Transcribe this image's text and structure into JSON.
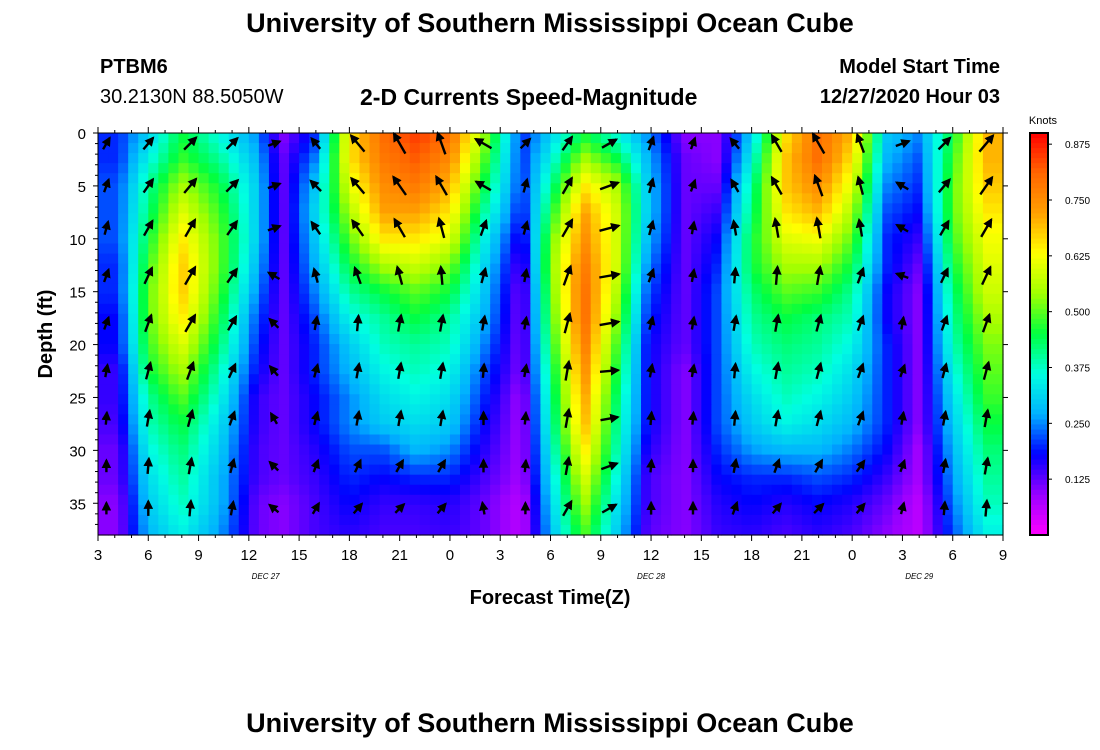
{
  "header": {
    "title": "University of Southern Mississippi Ocean Cube",
    "station_id": "PTBM6",
    "station_coords": "30.2130N 88.5050W",
    "subtitle": "2-D Currents Speed-Magnitude",
    "model_start_label": "Model Start Time",
    "model_start_value": "12/27/2020 Hour 03"
  },
  "footer": {
    "title": "University of Southern Mississippi Ocean Cube"
  },
  "chart_data": {
    "type": "heatmap",
    "title": "2-D Currents Speed-Magnitude",
    "xlabel": "Forecast Time(Z)",
    "ylabel": "Depth (ft)",
    "xlim": [
      3,
      57
    ],
    "ylim": [
      0,
      38
    ],
    "y_ticks": [
      "0",
      "5",
      "10",
      "15",
      "20",
      "25",
      "30",
      "35"
    ],
    "y_tick_values": [
      0,
      5,
      10,
      15,
      20,
      25,
      30,
      35
    ],
    "x_ticks": [
      "3",
      "6",
      "9",
      "12",
      "15",
      "18",
      "21",
      "0",
      "3",
      "6",
      "9",
      "12",
      "15",
      "18",
      "21",
      "0",
      "3",
      "6",
      "9"
    ],
    "date_labels": [
      {
        "label": "DEC 27",
        "hour": 13
      },
      {
        "label": "DEC 28",
        "hour": 36
      },
      {
        "label": "DEC 29",
        "hour": 52
      }
    ],
    "colorbar": {
      "title": "Knots",
      "ticks": [
        "0.875",
        "0.750",
        "0.625",
        "0.500",
        "0.375",
        "0.250",
        "0.125"
      ],
      "tick_values": [
        0.875,
        0.75,
        0.625,
        0.5,
        0.375,
        0.25,
        0.125
      ],
      "range": [
        0,
        0.9
      ],
      "colors": [
        "#ff00ff",
        "#9900ff",
        "#0000ff",
        "#00b0ff",
        "#00ffe0",
        "#00ff40",
        "#a0ff00",
        "#ffff00",
        "#ffa000",
        "#ff6600",
        "#ff0000"
      ]
    },
    "times": [
      4.2,
      6,
      8,
      10.3,
      12.5,
      14,
      16,
      18,
      20,
      22,
      24,
      26,
      28.3,
      30,
      32,
      34,
      35.8,
      38,
      40,
      42,
      44,
      46,
      48,
      50,
      52,
      54,
      56
    ],
    "depths": [
      0,
      2.5,
      5,
      7.5,
      10,
      12.5,
      15,
      17.5,
      20,
      22.5,
      25,
      27.5,
      30,
      32.5,
      35,
      37.5
    ],
    "speed": [
      [
        0.2,
        0.3,
        0.45,
        0.35,
        0.25,
        0.1,
        0.2,
        0.65,
        0.8,
        0.85,
        0.8,
        0.55,
        0.2,
        0.3,
        0.45,
        0.35,
        0.25,
        0.1,
        0.1,
        0.3,
        0.65,
        0.8,
        0.7,
        0.3,
        0.25,
        0.45,
        0.7
      ],
      [
        0.2,
        0.35,
        0.48,
        0.4,
        0.28,
        0.12,
        0.25,
        0.65,
        0.78,
        0.82,
        0.75,
        0.5,
        0.2,
        0.35,
        0.55,
        0.45,
        0.28,
        0.12,
        0.1,
        0.35,
        0.68,
        0.8,
        0.65,
        0.28,
        0.22,
        0.48,
        0.7
      ],
      [
        0.22,
        0.4,
        0.55,
        0.45,
        0.3,
        0.12,
        0.3,
        0.6,
        0.75,
        0.78,
        0.7,
        0.45,
        0.2,
        0.4,
        0.65,
        0.55,
        0.3,
        0.12,
        0.12,
        0.4,
        0.68,
        0.75,
        0.6,
        0.25,
        0.2,
        0.5,
        0.68
      ],
      [
        0.22,
        0.42,
        0.6,
        0.48,
        0.3,
        0.12,
        0.32,
        0.55,
        0.72,
        0.72,
        0.65,
        0.4,
        0.18,
        0.45,
        0.72,
        0.58,
        0.3,
        0.12,
        0.15,
        0.42,
        0.65,
        0.7,
        0.55,
        0.22,
        0.18,
        0.5,
        0.65
      ],
      [
        0.22,
        0.45,
        0.65,
        0.5,
        0.3,
        0.12,
        0.3,
        0.5,
        0.65,
        0.65,
        0.6,
        0.35,
        0.15,
        0.5,
        0.75,
        0.58,
        0.28,
        0.12,
        0.18,
        0.45,
        0.6,
        0.62,
        0.5,
        0.2,
        0.15,
        0.48,
        0.62
      ],
      [
        0.2,
        0.48,
        0.68,
        0.5,
        0.28,
        0.12,
        0.28,
        0.45,
        0.55,
        0.58,
        0.52,
        0.32,
        0.12,
        0.52,
        0.78,
        0.58,
        0.25,
        0.12,
        0.2,
        0.45,
        0.55,
        0.55,
        0.45,
        0.2,
        0.12,
        0.45,
        0.6
      ],
      [
        0.2,
        0.5,
        0.68,
        0.48,
        0.25,
        0.12,
        0.25,
        0.4,
        0.45,
        0.5,
        0.45,
        0.3,
        0.1,
        0.5,
        0.8,
        0.55,
        0.22,
        0.12,
        0.22,
        0.42,
        0.5,
        0.48,
        0.4,
        0.18,
        0.1,
        0.42,
        0.58
      ],
      [
        0.18,
        0.5,
        0.65,
        0.45,
        0.22,
        0.12,
        0.22,
        0.35,
        0.4,
        0.45,
        0.4,
        0.28,
        0.1,
        0.48,
        0.8,
        0.52,
        0.2,
        0.12,
        0.22,
        0.4,
        0.45,
        0.42,
        0.38,
        0.18,
        0.1,
        0.4,
        0.55
      ],
      [
        0.18,
        0.48,
        0.6,
        0.42,
        0.2,
        0.12,
        0.2,
        0.3,
        0.38,
        0.4,
        0.38,
        0.25,
        0.1,
        0.45,
        0.78,
        0.48,
        0.18,
        0.12,
        0.22,
        0.38,
        0.42,
        0.4,
        0.35,
        0.2,
        0.1,
        0.38,
        0.52
      ],
      [
        0.15,
        0.45,
        0.55,
        0.38,
        0.18,
        0.12,
        0.2,
        0.28,
        0.35,
        0.38,
        0.35,
        0.22,
        0.1,
        0.42,
        0.75,
        0.45,
        0.18,
        0.1,
        0.22,
        0.35,
        0.4,
        0.38,
        0.32,
        0.2,
        0.1,
        0.35,
        0.5
      ],
      [
        0.15,
        0.4,
        0.5,
        0.35,
        0.15,
        0.12,
        0.18,
        0.25,
        0.32,
        0.35,
        0.32,
        0.2,
        0.08,
        0.4,
        0.72,
        0.42,
        0.18,
        0.1,
        0.22,
        0.32,
        0.38,
        0.35,
        0.3,
        0.2,
        0.1,
        0.32,
        0.48
      ],
      [
        0.14,
        0.38,
        0.45,
        0.32,
        0.15,
        0.12,
        0.18,
        0.25,
        0.3,
        0.32,
        0.3,
        0.18,
        0.08,
        0.38,
        0.7,
        0.4,
        0.18,
        0.1,
        0.22,
        0.3,
        0.35,
        0.32,
        0.28,
        0.2,
        0.1,
        0.3,
        0.45
      ],
      [
        0.12,
        0.35,
        0.42,
        0.3,
        0.14,
        0.12,
        0.16,
        0.22,
        0.22,
        0.28,
        0.25,
        0.16,
        0.08,
        0.35,
        0.65,
        0.38,
        0.16,
        0.1,
        0.2,
        0.26,
        0.28,
        0.28,
        0.24,
        0.18,
        0.08,
        0.28,
        0.42
      ],
      [
        0.12,
        0.32,
        0.4,
        0.28,
        0.14,
        0.12,
        0.15,
        0.2,
        0.18,
        0.2,
        0.2,
        0.14,
        0.08,
        0.32,
        0.6,
        0.35,
        0.14,
        0.1,
        0.18,
        0.2,
        0.2,
        0.22,
        0.2,
        0.15,
        0.08,
        0.26,
        0.4
      ],
      [
        0.1,
        0.3,
        0.38,
        0.28,
        0.12,
        0.1,
        0.14,
        0.18,
        0.15,
        0.15,
        0.16,
        0.12,
        0.06,
        0.3,
        0.55,
        0.32,
        0.14,
        0.1,
        0.16,
        0.18,
        0.16,
        0.18,
        0.16,
        0.12,
        0.06,
        0.24,
        0.38
      ],
      [
        0.1,
        0.28,
        0.35,
        0.26,
        0.12,
        0.1,
        0.14,
        0.16,
        0.14,
        0.14,
        0.15,
        0.12,
        0.06,
        0.28,
        0.5,
        0.3,
        0.13,
        0.1,
        0.15,
        0.16,
        0.14,
        0.16,
        0.14,
        0.1,
        0.06,
        0.22,
        0.35
      ]
    ],
    "vectors": {
      "times": [
        3.5,
        6,
        8.5,
        11,
        13.5,
        16,
        18.5,
        21,
        23.5,
        26,
        28.5,
        31,
        33.5,
        36,
        38.5,
        41,
        43.5,
        46,
        48.5,
        51,
        53.5,
        56
      ],
      "depths": [
        1,
        5,
        9,
        13.5,
        18,
        22.5,
        27,
        31.5,
        35.5
      ],
      "angles": [
        [
          30,
          40,
          45,
          45,
          70,
          320,
          320,
          330,
          340,
          300,
          45,
          35,
          60,
          20,
          20,
          320,
          330,
          330,
          340,
          70,
          45,
          40
        ],
        [
          20,
          35,
          40,
          45,
          70,
          315,
          320,
          325,
          330,
          300,
          15,
          30,
          70,
          15,
          20,
          330,
          330,
          340,
          345,
          300,
          40,
          35
        ],
        [
          15,
          30,
          30,
          35,
          70,
          325,
          325,
          330,
          345,
          20,
          15,
          30,
          75,
          15,
          10,
          350,
          350,
          350,
          350,
          300,
          30,
          30
        ],
        [
          20,
          25,
          30,
          35,
          300,
          345,
          340,
          345,
          355,
          15,
          10,
          20,
          80,
          20,
          10,
          5,
          5,
          10,
          20,
          290,
          25,
          25
        ],
        [
          20,
          20,
          30,
          30,
          315,
          10,
          5,
          10,
          10,
          10,
          10,
          15,
          80,
          15,
          10,
          10,
          10,
          15,
          20,
          10,
          20,
          20
        ],
        [
          10,
          15,
          20,
          25,
          320,
          15,
          10,
          10,
          10,
          5,
          10,
          10,
          85,
          10,
          10,
          5,
          10,
          15,
          20,
          20,
          15,
          15
        ],
        [
          5,
          10,
          15,
          20,
          330,
          15,
          10,
          10,
          10,
          0,
          5,
          10,
          80,
          5,
          5,
          5,
          10,
          15,
          20,
          10,
          10,
          10
        ],
        [
          0,
          5,
          10,
          15,
          315,
          20,
          25,
          30,
          30,
          0,
          5,
          10,
          70,
          5,
          0,
          10,
          20,
          30,
          35,
          20,
          10,
          10
        ],
        [
          0,
          0,
          5,
          10,
          310,
          30,
          40,
          45,
          40,
          350,
          0,
          30,
          60,
          0,
          0,
          20,
          40,
          45,
          40,
          15,
          5,
          5
        ]
      ]
    }
  }
}
